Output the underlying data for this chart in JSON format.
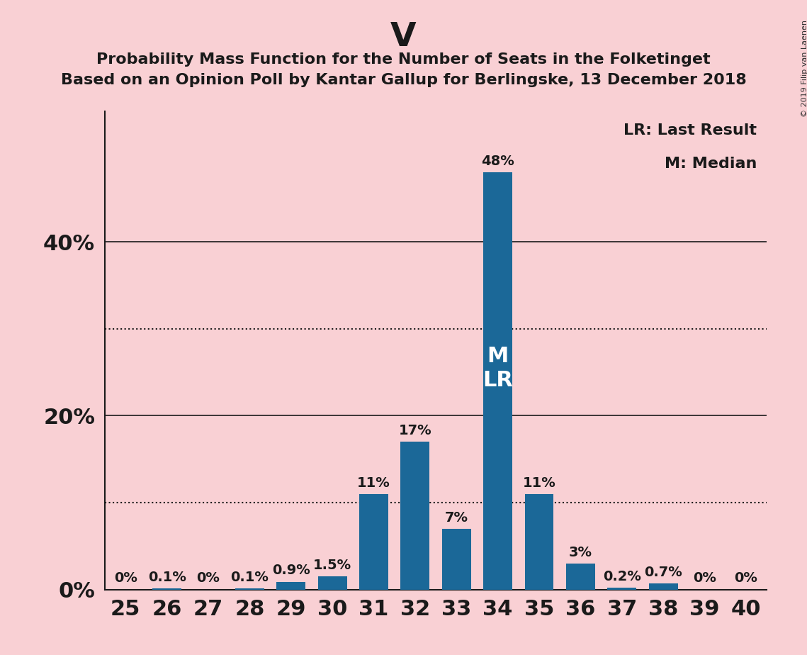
{
  "title_party": "V",
  "title_line1": "Probability Mass Function for the Number of Seats in the Folketinget",
  "title_line2": "Based on an Opinion Poll by Kantar Gallup for Berlingske, 13 December 2018",
  "copyright": "© 2019 Filip van Laenen",
  "categories": [
    25,
    26,
    27,
    28,
    29,
    30,
    31,
    32,
    33,
    34,
    35,
    36,
    37,
    38,
    39,
    40
  ],
  "values": [
    0.0,
    0.1,
    0.0,
    0.1,
    0.9,
    1.5,
    11.0,
    17.0,
    7.0,
    48.0,
    11.0,
    3.0,
    0.2,
    0.7,
    0.0,
    0.0
  ],
  "labels": [
    "0%",
    "0.1%",
    "0%",
    "0.1%",
    "0.9%",
    "1.5%",
    "11%",
    "17%",
    "7%",
    "48%",
    "11%",
    "3%",
    "0.2%",
    "0.7%",
    "0%",
    "0%"
  ],
  "bar_color": "#1b6898",
  "background_color": "#f9d0d4",
  "median_bar": 34,
  "last_result_bar": 34,
  "legend_lr": "LR: Last Result",
  "legend_m": "M: Median",
  "dotted_lines": [
    10,
    30
  ],
  "solid_lines": [
    20,
    40
  ],
  "ylim": [
    0,
    55
  ],
  "title_fontsize": 34,
  "subtitle_fontsize": 16,
  "axis_tick_fontsize": 22,
  "bar_label_fontsize": 14,
  "legend_fontsize": 16,
  "ml_fontsize": 22,
  "copyright_fontsize": 8
}
